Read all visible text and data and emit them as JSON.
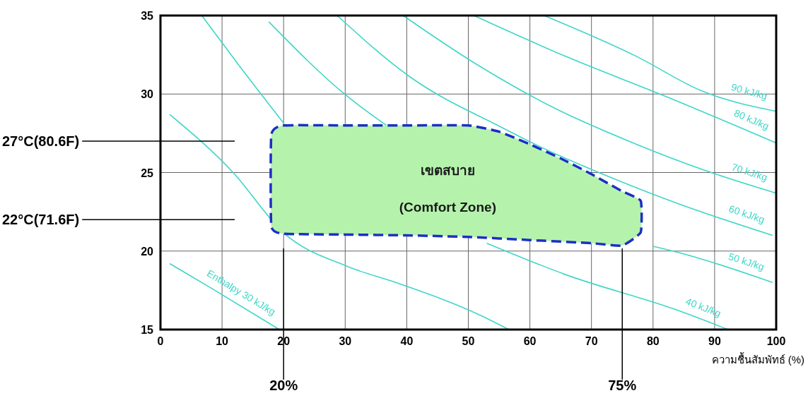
{
  "chart_data": {
    "type": "line",
    "xlabel": "ความชื้นสัมพัทธ์ (%)",
    "xlim": [
      0,
      100
    ],
    "xticks": [
      0,
      10,
      20,
      30,
      40,
      50,
      60,
      70,
      80,
      90,
      100
    ],
    "ylim": [
      15,
      35
    ],
    "yticks": [
      15,
      20,
      25,
      30,
      35
    ],
    "grid": true,
    "legend": false,
    "marker": "none",
    "series": [
      {
        "name": "Enthalpy 30 kJ/kg",
        "color": "#3fd6c8",
        "x": [
          1.5,
          8.4,
          19.3
        ],
        "values": [
          19.2,
          17.6,
          15.0
        ]
      },
      {
        "color": "#3fd6c8",
        "x": [
          1.5,
          11.8,
          19.9,
          30.5,
          38.2,
          52,
          56.6
        ],
        "values": [
          28.7,
          25.0,
          21.2,
          19.0,
          18.0,
          15.9,
          15.0
        ]
      },
      {
        "name": "40 kJ/kg",
        "color": "#3fd6c8",
        "x": [
          6.7,
          13,
          20.1,
          30,
          53,
          65.8,
          84.2,
          92.2
        ],
        "values": [
          35.0,
          31.7,
          28.1,
          null,
          20.5,
          18.5,
          16.2,
          15.0
        ]
      },
      {
        "name": "50 kJ/kg",
        "color": "#3fd6c8",
        "x": [
          17.6,
          30.2,
          36.7,
          50,
          80,
          84.2,
          99.4
        ],
        "values": [
          34.6,
          29.9,
          28.0,
          null,
          20.3,
          19.9,
          18.0
        ]
      },
      {
        "name": "60 kJ/kg",
        "color": "#3fd6c8",
        "x": [
          28.7,
          40.5,
          55.8,
          63.5,
          71.2,
          84.2,
          99.4
        ],
        "values": [
          35.0,
          31.1,
          27.8,
          26.3,
          25.0,
          23.0,
          21.0
        ]
      },
      {
        "name": "70 kJ/kg",
        "color": "#3fd6c8",
        "x": [
          39.4,
          50.9,
          63.5,
          77.3,
          88.7,
          99.9
        ],
        "values": [
          35.0,
          32.0,
          29.2,
          26.8,
          25.1,
          23.7
        ]
      },
      {
        "name": "80 kJ/kg",
        "color": "#3fd6c8",
        "x": [
          50.9,
          65.8,
          83,
          99.9
        ],
        "values": [
          35.0,
          32.4,
          29.7,
          26.9
        ]
      },
      {
        "name": "90 kJ/kg",
        "color": "#3fd6c8",
        "x": [
          62.3,
          77.3,
          87.9,
          100
        ],
        "values": [
          35.0,
          32.4,
          30.2,
          28.9
        ]
      },
      {
        "type": "area",
        "color": "#b5f3ad",
        "line_style": "dashed",
        "x": [
          18,
          20,
          30,
          40,
          50,
          55,
          60,
          65,
          70,
          75,
          78,
          78,
          75,
          70,
          60,
          50,
          40,
          30,
          20,
          18
        ],
        "values": [
          27.4,
          28.0,
          28.0,
          28.0,
          28.0,
          27.6,
          26.8,
          25.9,
          24.9,
          23.8,
          23.2,
          21.2,
          20.35,
          20.5,
          20.7,
          20.9,
          21.0,
          21.05,
          21.1,
          21.6
        ]
      }
    ],
    "ref_lines": [
      {
        "axis": "y",
        "value": 27,
        "label": "27°C(80.6F)"
      },
      {
        "axis": "y",
        "value": 22,
        "label": "22°C(71.6F)"
      },
      {
        "axis": "x",
        "value": 20,
        "label": "20%"
      },
      {
        "axis": "x",
        "value": 75,
        "label": "75%"
      }
    ],
    "annotations": [
      "เขตสบาย",
      "(Comfort Zone)"
    ]
  }
}
